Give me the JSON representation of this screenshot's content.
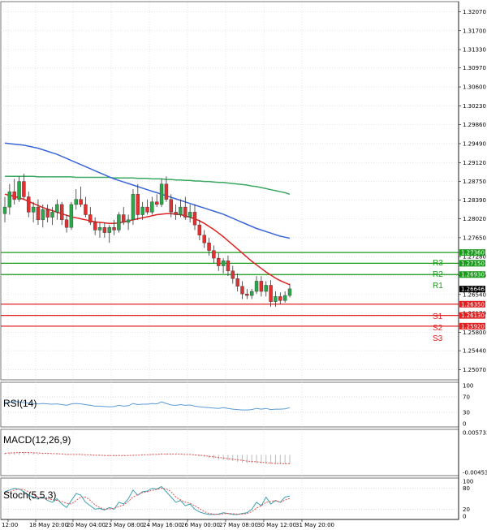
{
  "colors": {
    "bull": "#2aa84a",
    "bear": "#e03030",
    "ma_fast": "#e02020",
    "ma_mid": "#3a66d8",
    "ma_slow": "#3aa860",
    "resistance": "#1a9a1a",
    "support": "#e02020",
    "rsi": "#5b9bd5",
    "macd_signal": "#e05050",
    "macd_hist": "#bbbbbb",
    "stoch_k": "#3aa0b0",
    "stoch_d": "#e05050",
    "grid": "#d9d9d9"
  },
  "price_axis": {
    "ticks": [
      "1.32070",
      "1.31700",
      "1.31330",
      "1.30970",
      "1.30600",
      "1.30230",
      "1.29860",
      "1.29490",
      "1.29120",
      "1.28750",
      "1.28390",
      "1.28020",
      "1.27650",
      "1.27280",
      "1.26910",
      "1.26540",
      "1.26170",
      "1.25800",
      "1.25440",
      "1.25070"
    ],
    "ylim": [
      1.2487,
      1.3222
    ]
  },
  "time_axis": {
    "labels": [
      "12:00",
      "18 May 20:00",
      "20 May 04:00",
      "23 May 08:00",
      "24 May 16:00",
      "26 May 00:00",
      "27 May 08:00",
      "30 May 12:00",
      "31 May 20:00"
    ]
  },
  "current_price": "1.26646",
  "levels": [
    {
      "id": "R3",
      "label": "R3",
      "value": "1.27360",
      "type": "resistance"
    },
    {
      "id": "R2",
      "label": "R2",
      "value": "1.27150",
      "type": "resistance"
    },
    {
      "id": "R1",
      "label": "R1",
      "value": "1.26930",
      "type": "resistance"
    },
    {
      "id": "S1",
      "label": "S1",
      "value": "1.26350",
      "type": "support"
    },
    {
      "id": "S2",
      "label": "S2",
      "value": "1.26130",
      "type": "support"
    },
    {
      "id": "S3",
      "label": "S3",
      "value": "1.25920",
      "type": "support"
    }
  ],
  "indicators": {
    "rsi": {
      "label": "RSI(14)",
      "ticks": [
        "100",
        "70",
        "30",
        "0"
      ]
    },
    "macd": {
      "label": "MACD(12,26,9)",
      "ticks": [
        "0.005733",
        "-0.004534"
      ]
    },
    "stoch": {
      "label": "Stoch(5,5,3)",
      "ticks": [
        "100",
        "80",
        "20",
        "0"
      ]
    }
  },
  "chart_data": {
    "type": "candlestick",
    "candles": [
      {
        "o": 1.2812,
        "h": 1.2845,
        "l": 1.2795,
        "c": 1.2825
      },
      {
        "o": 1.2825,
        "h": 1.287,
        "l": 1.281,
        "c": 1.2855
      },
      {
        "o": 1.2855,
        "h": 1.288,
        "l": 1.283,
        "c": 1.284
      },
      {
        "o": 1.284,
        "h": 1.2885,
        "l": 1.2835,
        "c": 1.2875
      },
      {
        "o": 1.2875,
        "h": 1.289,
        "l": 1.284,
        "c": 1.2845
      },
      {
        "o": 1.2845,
        "h": 1.2855,
        "l": 1.2805,
        "c": 1.2815
      },
      {
        "o": 1.2815,
        "h": 1.2835,
        "l": 1.2795,
        "c": 1.2825
      },
      {
        "o": 1.2825,
        "h": 1.284,
        "l": 1.279,
        "c": 1.28
      },
      {
        "o": 1.28,
        "h": 1.283,
        "l": 1.2785,
        "c": 1.282
      },
      {
        "o": 1.282,
        "h": 1.283,
        "l": 1.2795,
        "c": 1.2805
      },
      {
        "o": 1.2805,
        "h": 1.2825,
        "l": 1.279,
        "c": 1.2815
      },
      {
        "o": 1.2815,
        "h": 1.284,
        "l": 1.28,
        "c": 1.283
      },
      {
        "o": 1.283,
        "h": 1.2835,
        "l": 1.279,
        "c": 1.28
      },
      {
        "o": 1.28,
        "h": 1.281,
        "l": 1.2775,
        "c": 1.2785
      },
      {
        "o": 1.2785,
        "h": 1.2835,
        "l": 1.278,
        "c": 1.283
      },
      {
        "o": 1.283,
        "h": 1.286,
        "l": 1.282,
        "c": 1.284
      },
      {
        "o": 1.284,
        "h": 1.2865,
        "l": 1.2825,
        "c": 1.283
      },
      {
        "o": 1.283,
        "h": 1.2845,
        "l": 1.2805,
        "c": 1.281
      },
      {
        "o": 1.281,
        "h": 1.2825,
        "l": 1.279,
        "c": 1.2795
      },
      {
        "o": 1.2795,
        "h": 1.2805,
        "l": 1.277,
        "c": 1.278
      },
      {
        "o": 1.278,
        "h": 1.2795,
        "l": 1.2765,
        "c": 1.2785
      },
      {
        "o": 1.2785,
        "h": 1.2795,
        "l": 1.2765,
        "c": 1.2775
      },
      {
        "o": 1.2775,
        "h": 1.279,
        "l": 1.2755,
        "c": 1.2785
      },
      {
        "o": 1.2785,
        "h": 1.28,
        "l": 1.277,
        "c": 1.278
      },
      {
        "o": 1.278,
        "h": 1.2815,
        "l": 1.2775,
        "c": 1.281
      },
      {
        "o": 1.281,
        "h": 1.2825,
        "l": 1.279,
        "c": 1.2795
      },
      {
        "o": 1.2795,
        "h": 1.281,
        "l": 1.278,
        "c": 1.28
      },
      {
        "o": 1.28,
        "h": 1.286,
        "l": 1.279,
        "c": 1.285
      },
      {
        "o": 1.285,
        "h": 1.287,
        "l": 1.28,
        "c": 1.281
      },
      {
        "o": 1.281,
        "h": 1.2835,
        "l": 1.28,
        "c": 1.2825
      },
      {
        "o": 1.2825,
        "h": 1.284,
        "l": 1.281,
        "c": 1.2815
      },
      {
        "o": 1.2815,
        "h": 1.2845,
        "l": 1.281,
        "c": 1.2835
      },
      {
        "o": 1.2835,
        "h": 1.285,
        "l": 1.2825,
        "c": 1.283
      },
      {
        "o": 1.283,
        "h": 1.288,
        "l": 1.2825,
        "c": 1.287
      },
      {
        "o": 1.287,
        "h": 1.2885,
        "l": 1.2835,
        "c": 1.284
      },
      {
        "o": 1.284,
        "h": 1.285,
        "l": 1.2805,
        "c": 1.2815
      },
      {
        "o": 1.2815,
        "h": 1.283,
        "l": 1.28,
        "c": 1.281
      },
      {
        "o": 1.281,
        "h": 1.284,
        "l": 1.2805,
        "c": 1.2825
      },
      {
        "o": 1.2825,
        "h": 1.2845,
        "l": 1.28,
        "c": 1.2805
      },
      {
        "o": 1.2805,
        "h": 1.283,
        "l": 1.2795,
        "c": 1.2815
      },
      {
        "o": 1.2815,
        "h": 1.283,
        "l": 1.278,
        "c": 1.279
      },
      {
        "o": 1.279,
        "h": 1.28,
        "l": 1.276,
        "c": 1.277
      },
      {
        "o": 1.277,
        "h": 1.278,
        "l": 1.2745,
        "c": 1.2755
      },
      {
        "o": 1.2755,
        "h": 1.2765,
        "l": 1.273,
        "c": 1.274
      },
      {
        "o": 1.274,
        "h": 1.275,
        "l": 1.2715,
        "c": 1.2725
      },
      {
        "o": 1.2725,
        "h": 1.2735,
        "l": 1.27,
        "c": 1.271
      },
      {
        "o": 1.271,
        "h": 1.2725,
        "l": 1.2695,
        "c": 1.272
      },
      {
        "o": 1.272,
        "h": 1.273,
        "l": 1.269,
        "c": 1.27
      },
      {
        "o": 1.27,
        "h": 1.271,
        "l": 1.2675,
        "c": 1.2685
      },
      {
        "o": 1.2685,
        "h": 1.2695,
        "l": 1.266,
        "c": 1.267
      },
      {
        "o": 1.267,
        "h": 1.268,
        "l": 1.2645,
        "c": 1.2655
      },
      {
        "o": 1.2655,
        "h": 1.2665,
        "l": 1.2645,
        "c": 1.2652
      },
      {
        "o": 1.2652,
        "h": 1.2665,
        "l": 1.2645,
        "c": 1.266
      },
      {
        "o": 1.266,
        "h": 1.269,
        "l": 1.2655,
        "c": 1.268
      },
      {
        "o": 1.268,
        "h": 1.269,
        "l": 1.265,
        "c": 1.266
      },
      {
        "o": 1.266,
        "h": 1.268,
        "l": 1.265,
        "c": 1.2672
      },
      {
        "o": 1.2672,
        "h": 1.2682,
        "l": 1.263,
        "c": 1.264
      },
      {
        "o": 1.264,
        "h": 1.266,
        "l": 1.263,
        "c": 1.265
      },
      {
        "o": 1.265,
        "h": 1.2658,
        "l": 1.2635,
        "c": 1.2642
      },
      {
        "o": 1.2642,
        "h": 1.266,
        "l": 1.2638,
        "c": 1.2652
      },
      {
        "o": 1.2652,
        "h": 1.2675,
        "l": 1.2648,
        "c": 1.2665
      }
    ],
    "ma_fast": [
      1.285,
      1.2848,
      1.2846,
      1.2843,
      1.284,
      1.2836,
      1.2832,
      1.2828,
      1.2824,
      1.2821,
      1.2818,
      1.2815,
      1.2812,
      1.2809,
      1.2806,
      1.2804,
      1.2802,
      1.28,
      1.2798,
      1.2796,
      1.2795,
      1.2794,
      1.2793,
      1.2793,
      1.2794,
      1.2796,
      1.2798,
      1.28,
      1.2802,
      1.2804,
      1.2806,
      1.2808,
      1.281,
      1.2811,
      1.2812,
      1.2812,
      1.2811,
      1.281,
      1.2808,
      1.2805,
      1.2802,
      1.2798,
      1.2793,
      1.2787,
      1.2781,
      1.2774,
      1.2767,
      1.2759,
      1.2751,
      1.2743,
      1.2735,
      1.2727,
      1.2719,
      1.2712,
      1.2705,
      1.2698,
      1.2692,
      1.2686,
      1.2681,
      1.2677,
      1.2673
    ],
    "ma_mid": [
      1.295,
      1.2949,
      1.2948,
      1.2947,
      1.2946,
      1.2944,
      1.2942,
      1.294,
      1.2937,
      1.2934,
      1.2931,
      1.2928,
      1.2924,
      1.292,
      1.2916,
      1.2912,
      1.2908,
      1.2904,
      1.29,
      1.2896,
      1.2892,
      1.2888,
      1.2884,
      1.288,
      1.2877,
      1.2874,
      1.2871,
      1.2868,
      1.2865,
      1.2862,
      1.2859,
      1.2856,
      1.2853,
      1.285,
      1.2847,
      1.2844,
      1.2841,
      1.2838,
      1.2835,
      1.2832,
      1.2829,
      1.2826,
      1.2823,
      1.282,
      1.2817,
      1.2814,
      1.2811,
      1.2807,
      1.2803,
      1.2799,
      1.2795,
      1.2791,
      1.2787,
      1.2783,
      1.278,
      1.2777,
      1.2774,
      1.2771,
      1.2768,
      1.2766,
      1.2764
    ],
    "ma_slow": [
      1.2885,
      1.2885,
      1.2885,
      1.2885,
      1.2885,
      1.2885,
      1.2885,
      1.2884,
      1.2884,
      1.2884,
      1.2884,
      1.2884,
      1.2884,
      1.2884,
      1.2884,
      1.2883,
      1.2883,
      1.2883,
      1.2883,
      1.2883,
      1.2883,
      1.2883,
      1.2883,
      1.2882,
      1.2882,
      1.2882,
      1.2882,
      1.2882,
      1.2881,
      1.2881,
      1.2881,
      1.288,
      1.288,
      1.288,
      1.2879,
      1.2879,
      1.2878,
      1.2878,
      1.2877,
      1.2877,
      1.2876,
      1.2876,
      1.2875,
      1.2875,
      1.2874,
      1.2873,
      1.2873,
      1.2872,
      1.2871,
      1.287,
      1.2869,
      1.2868,
      1.2866,
      1.2865,
      1.2863,
      1.2861,
      1.2859,
      1.2857,
      1.2855,
      1.2853,
      1.285
    ],
    "rsi": [
      55,
      56,
      58,
      57,
      55,
      54,
      53,
      52,
      53,
      52,
      51,
      52,
      50,
      48,
      52,
      53,
      52,
      50,
      48,
      46,
      46,
      45,
      44,
      45,
      48,
      46,
      47,
      53,
      50,
      51,
      51,
      53,
      52,
      57,
      53,
      49,
      48,
      50,
      48,
      49,
      46,
      44,
      43,
      42,
      41,
      40,
      42,
      40,
      38,
      37,
      36,
      36,
      37,
      40,
      38,
      40,
      37,
      38,
      38,
      39,
      42
    ],
    "macd_hist": [
      0.0005,
      0.0006,
      0.0007,
      0.0007,
      0.0006,
      0.0005,
      0.0004,
      0.0003,
      0.0002,
      0.0002,
      0.0001,
      0.0001,
      0.0,
      -0.0001,
      0.0,
      0.0001,
      0.0001,
      0.0,
      -0.0001,
      -0.0002,
      -0.0002,
      -0.0003,
      -0.0003,
      -0.0003,
      -0.0002,
      -0.0002,
      -0.0002,
      0.0,
      0.0001,
      0.0001,
      0.0001,
      0.0002,
      0.0002,
      0.0004,
      0.0003,
      0.0002,
      0.0001,
      0.0001,
      0.0,
      0.0,
      -0.0002,
      -0.0004,
      -0.0006,
      -0.0008,
      -0.001,
      -0.0012,
      -0.0013,
      -0.0014,
      -0.0016,
      -0.0018,
      -0.002,
      -0.0021,
      -0.0022,
      -0.0022,
      -0.0023,
      -0.0023,
      -0.0024,
      -0.0024,
      -0.0024,
      -0.0024,
      -0.0023
    ],
    "macd_signal": [
      0.0004,
      0.0005,
      0.0005,
      0.0006,
      0.0006,
      0.0006,
      0.0005,
      0.0005,
      0.0004,
      0.0004,
      0.0003,
      0.0003,
      0.0002,
      0.0001,
      0.0001,
      0.0001,
      0.0001,
      0.0,
      0.0,
      -0.0001,
      -0.0001,
      -0.0002,
      -0.0002,
      -0.0002,
      -0.0002,
      -0.0002,
      -0.0002,
      -0.0001,
      -0.0001,
      0.0,
      0.0,
      0.0001,
      0.0001,
      0.0002,
      0.0002,
      0.0002,
      0.0002,
      0.0002,
      0.0001,
      0.0001,
      0.0,
      -0.0001,
      -0.0002,
      -0.0004,
      -0.0005,
      -0.0007,
      -0.0008,
      -0.001,
      -0.0011,
      -0.0013,
      -0.0014,
      -0.0016,
      -0.0017,
      -0.0018,
      -0.0019,
      -0.002,
      -0.0021,
      -0.0022,
      -0.0022,
      -0.0023,
      -0.0023
    ],
    "stoch_k": [
      70,
      75,
      80,
      78,
      70,
      60,
      55,
      50,
      55,
      45,
      40,
      50,
      35,
      25,
      45,
      65,
      60,
      40,
      30,
      20,
      22,
      18,
      25,
      20,
      40,
      35,
      50,
      75,
      60,
      70,
      72,
      80,
      78,
      85,
      70,
      55,
      40,
      45,
      30,
      35,
      20,
      12,
      8,
      5,
      5,
      6,
      10,
      8,
      5,
      5,
      8,
      10,
      20,
      40,
      30,
      55,
      35,
      45,
      40,
      55,
      58
    ],
    "stoch_d": [
      65,
      70,
      75,
      78,
      76,
      70,
      62,
      55,
      52,
      50,
      47,
      45,
      42,
      37,
      35,
      45,
      55,
      55,
      45,
      32,
      25,
      20,
      21,
      22,
      28,
      32,
      42,
      55,
      62,
      68,
      70,
      74,
      77,
      80,
      78,
      70,
      55,
      47,
      40,
      37,
      30,
      22,
      13,
      8,
      6,
      5,
      7,
      8,
      7,
      6,
      6,
      8,
      13,
      23,
      30,
      40,
      42,
      45,
      40,
      46,
      51
    ]
  }
}
